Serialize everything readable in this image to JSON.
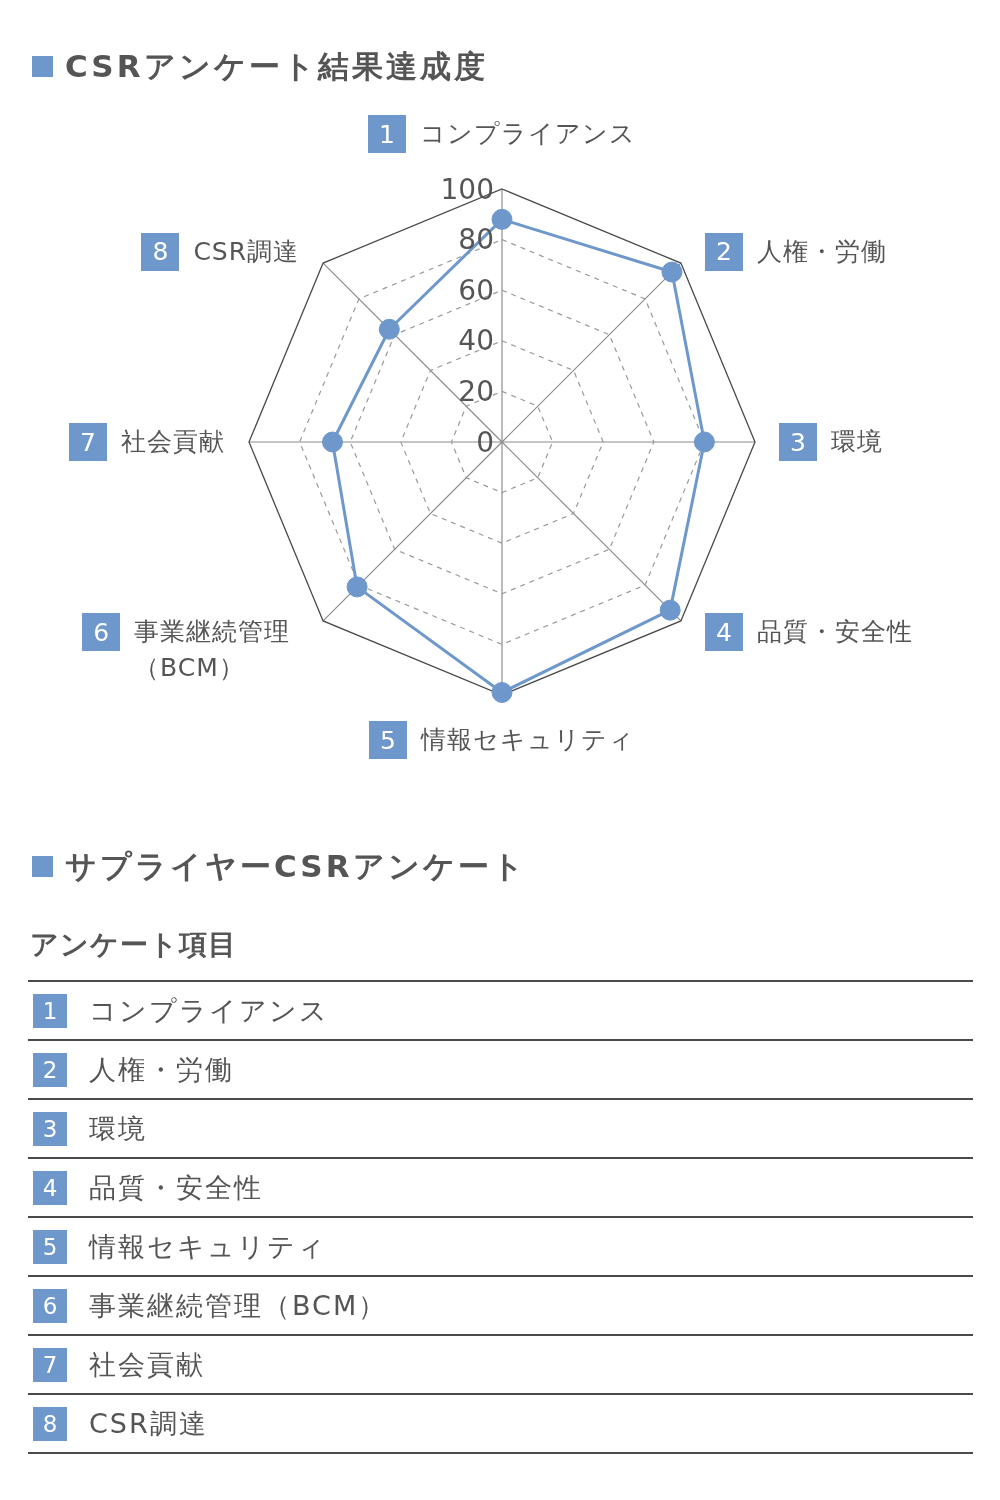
{
  "chart_data": {
    "type": "radar",
    "title": "CSRアンケート結果達成度",
    "categories": [
      "1 コンプライアンス",
      "2 人権・労働",
      "3 環境",
      "4 品質・安全性",
      "5 情報セキュリティ",
      "6 事業継続管理（BCM）",
      "7 社会貢献",
      "8 CSR調達"
    ],
    "series": [
      {
        "color": "#6e98cc",
        "values": [
          88,
          95,
          80,
          94,
          99,
          81,
          67,
          63
        ]
      }
    ],
    "ylim": [
      0,
      100
    ],
    "yticks": [
      0,
      20,
      40,
      60,
      80,
      100
    ],
    "grid": true,
    "marker": "circle",
    "line_style": "solid",
    "annotations": [
      "サプライヤーCSRアンケート",
      "アンケート項目"
    ]
  }
}
